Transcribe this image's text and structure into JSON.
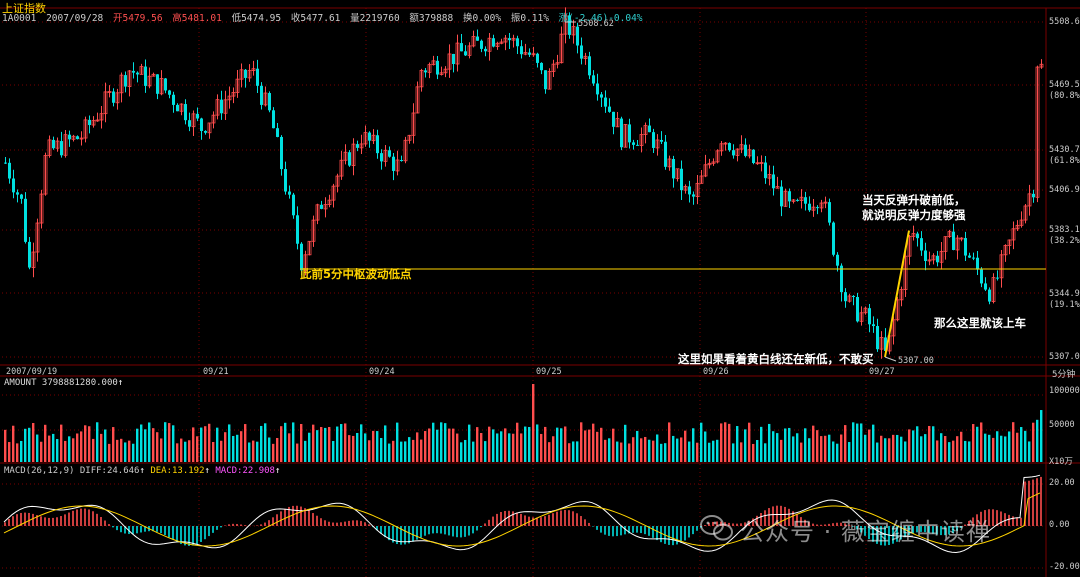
{
  "header": {
    "title": "上证指数",
    "code": "1A0001",
    "date": "2007/09/28",
    "open": "开5479.56",
    "high": "高5481.01",
    "low": "低5474.95",
    "close": "收5477.61",
    "volume": "量2219760",
    "amount": "额379888",
    "turnover": "换0.00%",
    "amplitude": "振0.11%",
    "change": "涨(-2.46)-0.04%"
  },
  "price_axis": [
    {
      "label": "5508.6"
    },
    {
      "label": "5469.5"
    },
    {
      "label": "(80.8%)"
    },
    {
      "label": "5430.7"
    },
    {
      "label": "(61.8%)"
    },
    {
      "label": "5406.9"
    },
    {
      "label": "5383.1"
    },
    {
      "label": "(38.2%)"
    },
    {
      "label": "5344.9"
    },
    {
      "label": "(19.1%)"
    },
    {
      "label": "5307.0"
    }
  ],
  "price_markers": {
    "high": "5508.62",
    "low": "5307.00"
  },
  "date_axis": [
    "2007/09/19",
    "09/21",
    "09/24",
    "09/25",
    "09/26",
    "09/27"
  ],
  "period_label": "5分钟",
  "annotations": {
    "prior_low": "此前5分中枢波动低点",
    "rebound_line1": "当天反弹升破前低，",
    "rebound_line2": "就说明反弹力度够强",
    "get_on": "那么这里就该上车",
    "dont_dare": "这里如果看着黄白线还在新低，不敢买"
  },
  "amount_panel": {
    "label": "AMOUNT 3798881280.000",
    "axis": [
      "100000",
      "50000",
      "X10万"
    ]
  },
  "macd_panel": {
    "label": "MACD(26,12,9)",
    "diff": "DIFF:24.646",
    "dea": "DEA:13.192",
    "macd": "MACD:22.908",
    "axis": [
      "20.00",
      "0.00",
      "-20.00"
    ]
  },
  "watermark": "公众号 · 薇宝缠中读禅",
  "colors": {
    "up": "#ff4d4d",
    "down": "#00e0e0",
    "yellow": "#ffd400",
    "white": "#ffffff",
    "magenta": "#ff55ff",
    "grid": "#7a0000"
  },
  "chart_data": {
    "type": "candlestick",
    "price_range": [
      5307.0,
      5508.62
    ],
    "reference_line": 5360,
    "rebound_arrow": {
      "from": 5307.0,
      "to": 5383.1
    }
  }
}
